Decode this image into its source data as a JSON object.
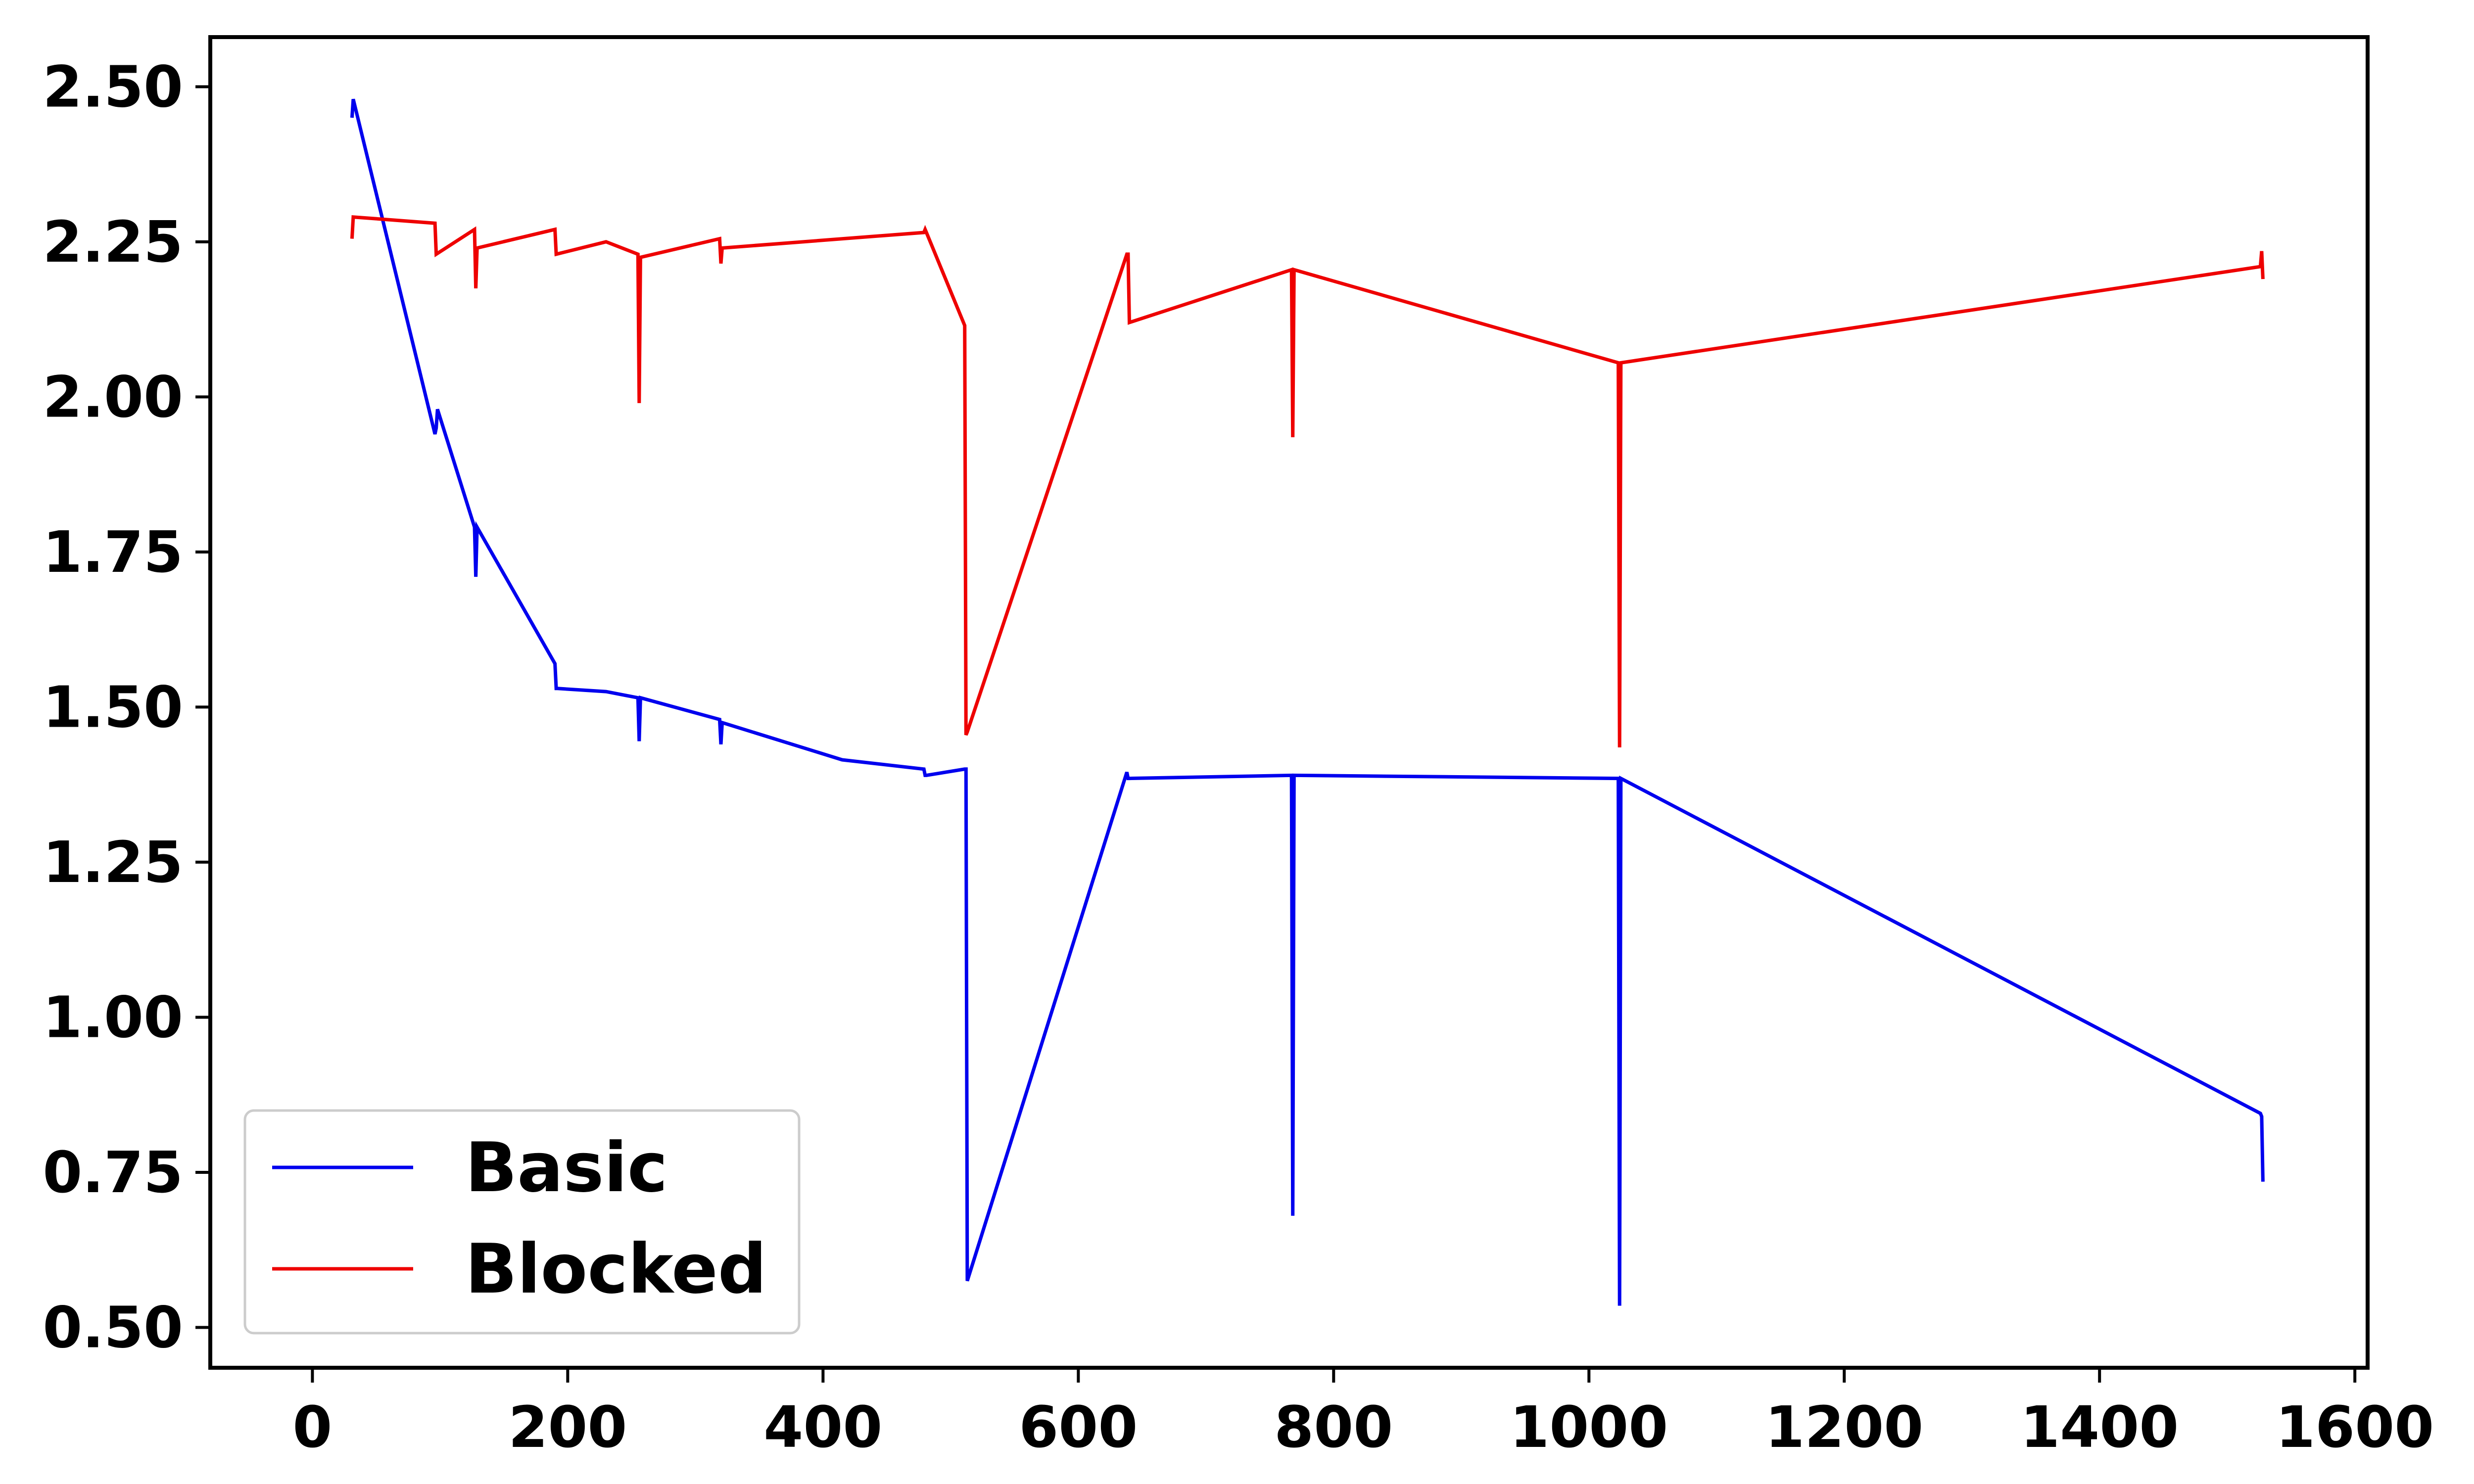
{
  "chart_data": {
    "type": "line",
    "title": "",
    "xlabel": "",
    "ylabel": "",
    "xlim": [
      -80,
      1610
    ],
    "ylim": [
      0.435,
      2.58
    ],
    "xticks": [
      0,
      200,
      400,
      600,
      800,
      1000,
      1200,
      1400,
      1600
    ],
    "yticks": [
      0.5,
      0.75,
      1.0,
      1.25,
      1.5,
      1.75,
      2.0,
      2.25,
      2.5
    ],
    "xtick_labels": [
      "0",
      "200",
      "400",
      "600",
      "800",
      "1000",
      "1200",
      "1400",
      "1600"
    ],
    "ytick_labels": [
      "0.50",
      "0.75",
      "1.00",
      "1.25",
      "1.50",
      "1.75",
      "2.00",
      "2.25",
      "2.50"
    ],
    "grid": false,
    "legend": {
      "placement": "lower-left",
      "entries": [
        "Basic",
        "Blocked"
      ]
    },
    "series": [
      {
        "name": "Basic",
        "color": "#0000ee",
        "x": [
          31,
          32,
          96,
          97,
          98,
          127,
          128,
          129,
          190,
          191,
          192,
          230,
          255,
          256,
          257,
          319,
          320,
          321,
          415,
          479,
          480,
          481,
          511,
          512,
          513,
          638,
          639,
          640,
          767,
          768,
          769,
          1023,
          1024,
          1025,
          1526,
          1527,
          1528
        ],
        "y": [
          2.45,
          2.48,
          1.94,
          1.95,
          1.98,
          1.79,
          1.71,
          1.79,
          1.57,
          1.53,
          1.53,
          1.525,
          1.515,
          1.445,
          1.515,
          1.48,
          1.44,
          1.475,
          1.415,
          1.4,
          1.39,
          1.39,
          1.4,
          1.4,
          0.575,
          1.395,
          1.385,
          1.385,
          1.39,
          0.68,
          1.39,
          1.385,
          0.535,
          1.385,
          0.845,
          0.84,
          0.735
        ]
      },
      {
        "name": "Blocked",
        "color": "#ee0000",
        "x": [
          31,
          32,
          96,
          97,
          127,
          128,
          129,
          190,
          191,
          230,
          255,
          256,
          257,
          319,
          320,
          321,
          479,
          480,
          481,
          511,
          512,
          513,
          638,
          639,
          640,
          767,
          768,
          769,
          1023,
          1024,
          1025,
          1526,
          1527,
          1528
        ],
        "y": [
          2.255,
          2.29,
          2.28,
          2.23,
          2.27,
          2.175,
          2.24,
          2.27,
          2.23,
          2.25,
          2.23,
          1.99,
          2.225,
          2.255,
          2.215,
          2.24,
          2.265,
          2.27,
          2.265,
          2.115,
          1.455,
          1.46,
          2.23,
          2.23,
          2.12,
          2.205,
          1.935,
          2.205,
          2.055,
          1.435,
          2.055,
          2.21,
          2.235,
          2.19
        ]
      }
    ]
  }
}
